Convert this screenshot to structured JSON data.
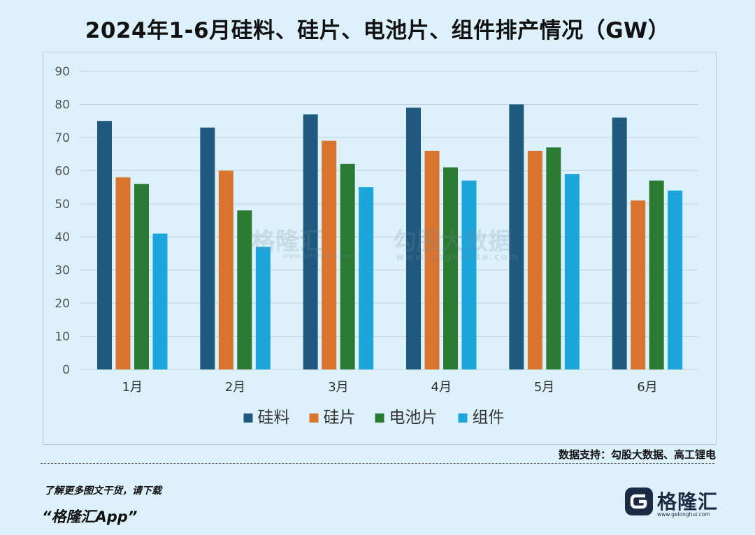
{
  "title": "2024年1-6月硅料、硅片、电池片、组件排产情况（GW）",
  "source": "数据支持：勾股大数据、高工锂电",
  "promo": {
    "line1": "了解更多图文干货，请下载",
    "line2": "“格隆汇App”"
  },
  "brand": {
    "name": "格隆汇",
    "url": "www.gelonghui.com",
    "logo_icon": "gelonghui-logo-icon"
  },
  "watermarks": {
    "gelonghui_cn": "格隆汇",
    "gelonghui_url": "www.gelonghui.com",
    "gogudata_cn": "勾股大数据",
    "gogudata_url": "www.gogudata.com"
  },
  "colors": {
    "background": "#dcf1fb",
    "silicon_material": "#1f5a7e",
    "wafer": "#d9742f",
    "cell": "#2a7a33",
    "module": "#1aa5db",
    "grid": "#c3d2da"
  },
  "chart_data": {
    "type": "bar",
    "categories": [
      "1月",
      "2月",
      "3月",
      "4月",
      "5月",
      "6月"
    ],
    "series": [
      {
        "name": "硅料",
        "values": [
          75,
          73,
          77,
          79,
          80,
          76
        ]
      },
      {
        "name": "硅片",
        "values": [
          58,
          60,
          69,
          66,
          66,
          51
        ]
      },
      {
        "name": "电池片",
        "values": [
          56,
          48,
          62,
          61,
          67,
          57
        ]
      },
      {
        "name": "组件",
        "values": [
          41,
          37,
          55,
          57,
          59,
          54
        ]
      }
    ],
    "ylim": [
      0,
      90
    ],
    "yticks": [
      0,
      10,
      20,
      30,
      40,
      50,
      60,
      70,
      80,
      90
    ],
    "grid": true,
    "legend": "bottom"
  }
}
